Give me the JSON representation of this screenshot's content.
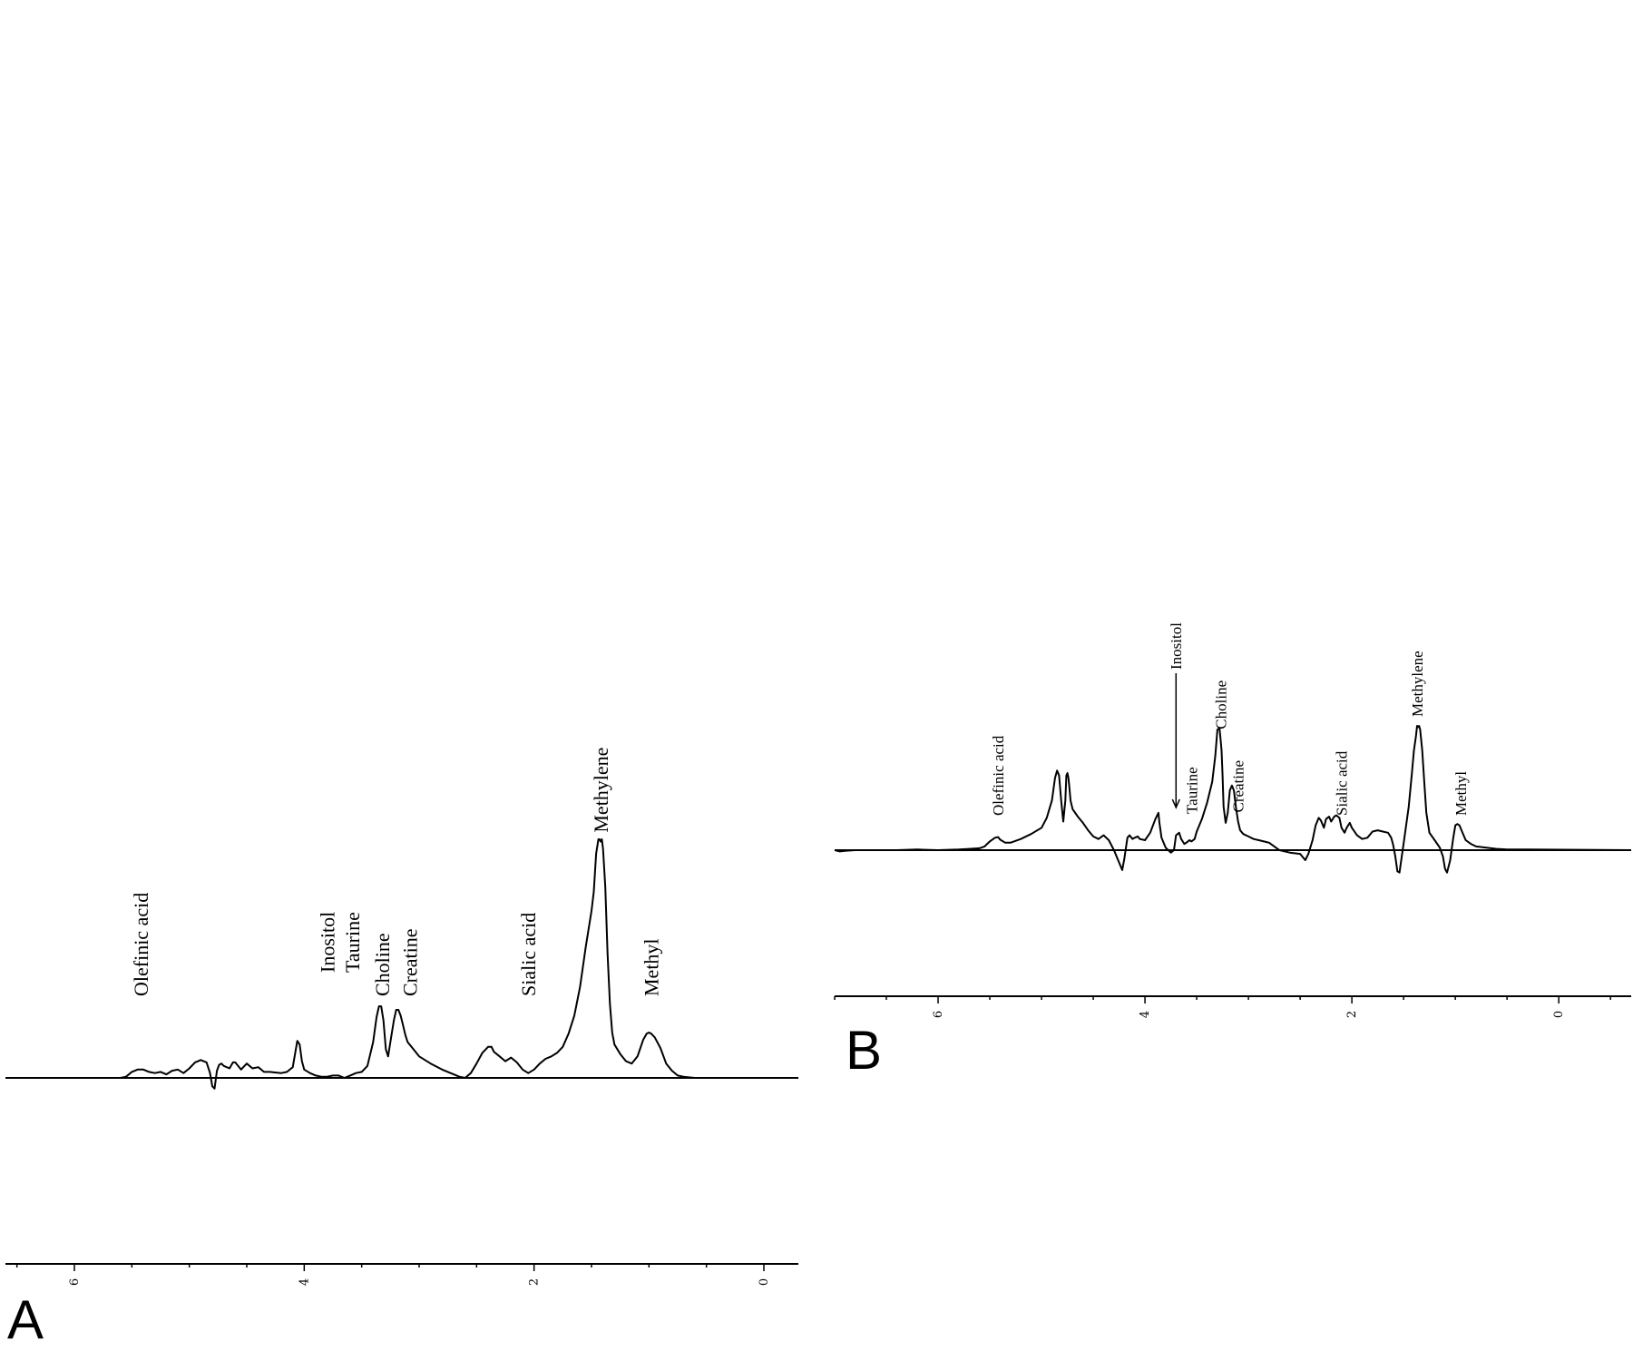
{
  "chart_data": [
    {
      "type": "line",
      "panel_label": "A",
      "xlim": [
        6.6,
        -0.3
      ],
      "xticks": [
        6,
        4,
        2,
        0
      ],
      "xtick_labels": [
        "6",
        "4",
        "2",
        "0"
      ],
      "grid": false,
      "series": [
        {
          "x": [
            6.6,
            5.6,
            5.55,
            5.5,
            5.45,
            5.4,
            5.35,
            5.3,
            5.25,
            5.2,
            5.15,
            5.1,
            5.05,
            5.0,
            4.95,
            4.9,
            4.85,
            4.82,
            4.8,
            4.78,
            4.76,
            4.74,
            4.72,
            4.7,
            4.65,
            4.62,
            4.6,
            4.55,
            4.5,
            4.45,
            4.4,
            4.35,
            4.3,
            4.2,
            4.15,
            4.1,
            4.08,
            4.06,
            4.04,
            4.02,
            4.0,
            3.95,
            3.9,
            3.85,
            3.8,
            3.75,
            3.7,
            3.65,
            3.6,
            3.55,
            3.5,
            3.45,
            3.4,
            3.37,
            3.35,
            3.33,
            3.31,
            3.29,
            3.27,
            3.25,
            3.22,
            3.2,
            3.18,
            3.16,
            3.14,
            3.12,
            3.1,
            3.05,
            3.0,
            2.9,
            2.8,
            2.7,
            2.65,
            2.6,
            2.55,
            2.5,
            2.45,
            2.4,
            2.37,
            2.35,
            2.3,
            2.25,
            2.2,
            2.15,
            2.1,
            2.05,
            2.0,
            1.95,
            1.9,
            1.85,
            1.8,
            1.75,
            1.7,
            1.65,
            1.6,
            1.55,
            1.5,
            1.48,
            1.46,
            1.44,
            1.43,
            1.42,
            1.41,
            1.4,
            1.38,
            1.36,
            1.34,
            1.32,
            1.3,
            1.25,
            1.2,
            1.15,
            1.1,
            1.05,
            1.02,
            1.0,
            0.98,
            0.95,
            0.9,
            0.85,
            0.8,
            0.75,
            0.7,
            0.6,
            -0.3
          ],
          "y": [
            0,
            0,
            0.5,
            2.5,
            3.5,
            3.5,
            2.5,
            2.0,
            2.5,
            1.5,
            3.0,
            3.5,
            2.0,
            4.0,
            6.5,
            7.5,
            6.5,
            2.0,
            -3.5,
            -4.5,
            3.0,
            5.5,
            6.0,
            5.0,
            4.0,
            6.5,
            6.5,
            3.5,
            6.0,
            4.0,
            4.5,
            2.5,
            2.5,
            2.0,
            2.5,
            4.5,
            10.0,
            15.5,
            14.0,
            7.0,
            3.5,
            2.0,
            1.0,
            0.5,
            0.5,
            1.0,
            1.0,
            0.0,
            1.0,
            2.0,
            2.5,
            5.0,
            15.0,
            25.5,
            30.0,
            30.0,
            24.0,
            12.0,
            9.0,
            15.0,
            24.0,
            28.5,
            28.5,
            26.0,
            22.0,
            18.0,
            15.0,
            12.0,
            9.0,
            6.0,
            3.5,
            1.5,
            0.5,
            0.0,
            2.0,
            6.0,
            10.5,
            13.0,
            13.0,
            11.0,
            9.0,
            7.0,
            8.5,
            6.5,
            3.5,
            2.0,
            3.5,
            6.0,
            8.0,
            9.0,
            10.5,
            13.0,
            18.5,
            26.0,
            38.0,
            55.0,
            70.0,
            78.0,
            94.0,
            100.0,
            100.0,
            99.0,
            100.0,
            96.0,
            80.0,
            52.0,
            31.0,
            19.0,
            14.0,
            10.0,
            7.0,
            6.0,
            9.0,
            16.0,
            18.5,
            19.0,
            18.5,
            17.0,
            12.5,
            6.0,
            3.0,
            1.0,
            0.5,
            0.0,
            0.0
          ]
        }
      ],
      "peak_labels": [
        {
          "text": "Olefinic acid",
          "x": 5.42
        },
        {
          "text": "Inositol",
          "x": 3.8
        },
        {
          "text": "Taurine",
          "x": 3.58
        },
        {
          "text": "Choline",
          "x": 3.32
        },
        {
          "text": "Creatine",
          "x": 3.08
        },
        {
          "text": "Sialic acid",
          "x": 2.05
        },
        {
          "text": "Methylene",
          "x": 1.42
        },
        {
          "text": "Methyl",
          "x": 0.98
        }
      ]
    },
    {
      "type": "line",
      "panel_label": "B",
      "xlim": [
        7.0,
        -0.7
      ],
      "xticks": [
        6,
        4,
        2,
        0
      ],
      "xtick_labels": [
        "6",
        "4",
        "2",
        "0"
      ],
      "grid": false,
      "series": [
        {
          "x": [
            7.0,
            6.95,
            6.9,
            6.8,
            6.6,
            6.4,
            6.2,
            6.0,
            5.8,
            5.7,
            5.6,
            5.55,
            5.5,
            5.45,
            5.42,
            5.4,
            5.35,
            5.3,
            5.2,
            5.1,
            5.0,
            4.95,
            4.9,
            4.87,
            4.85,
            4.83,
            4.81,
            4.79,
            4.77,
            4.76,
            4.75,
            4.74,
            4.73,
            4.72,
            4.7,
            4.65,
            4.6,
            4.55,
            4.5,
            4.45,
            4.4,
            4.35,
            4.3,
            4.25,
            4.22,
            4.2,
            4.17,
            4.15,
            4.12,
            4.1,
            4.07,
            4.05,
            4.0,
            3.95,
            3.9,
            3.87,
            3.86,
            3.84,
            3.8,
            3.75,
            3.72,
            3.7,
            3.67,
            3.65,
            3.62,
            3.6,
            3.57,
            3.55,
            3.52,
            3.5,
            3.45,
            3.4,
            3.35,
            3.32,
            3.3,
            3.28,
            3.27,
            3.26,
            3.25,
            3.24,
            3.22,
            3.2,
            3.18,
            3.16,
            3.14,
            3.12,
            3.1,
            3.08,
            3.05,
            3.0,
            2.95,
            2.9,
            2.8,
            2.75,
            2.7,
            2.6,
            2.5,
            2.45,
            2.42,
            2.38,
            2.35,
            2.32,
            2.3,
            2.27,
            2.25,
            2.22,
            2.2,
            2.17,
            2.15,
            2.12,
            2.1,
            2.07,
            2.05,
            2.02,
            2.0,
            1.95,
            1.9,
            1.85,
            1.8,
            1.75,
            1.7,
            1.65,
            1.62,
            1.6,
            1.58,
            1.56,
            1.54,
            1.5,
            1.45,
            1.42,
            1.4,
            1.38,
            1.37,
            1.36,
            1.35,
            1.34,
            1.32,
            1.3,
            1.28,
            1.25,
            1.2,
            1.15,
            1.12,
            1.1,
            1.08,
            1.05,
            1.02,
            1.0,
            0.98,
            0.96,
            0.94,
            0.92,
            0.9,
            0.85,
            0.8,
            0.7,
            0.6,
            0.5,
            0.3,
            -0.7
          ],
          "y": [
            0,
            -1.0,
            -0.5,
            0,
            0,
            0,
            0.5,
            0,
            0.5,
            1.0,
            1.5,
            3.0,
            7.0,
            10.0,
            10.5,
            8.5,
            6.0,
            6.0,
            9.0,
            13.0,
            18.0,
            26.0,
            40.0,
            58.0,
            64.0,
            60.0,
            40.0,
            23.0,
            40.0,
            60.0,
            62.0,
            58.0,
            50.0,
            40.0,
            33.0,
            27.0,
            22.0,
            16.0,
            11.0,
            9.0,
            12.0,
            8.0,
            0,
            -10.0,
            -16.0,
            -7.0,
            10.0,
            12.0,
            9.0,
            10.0,
            11.0,
            9.0,
            8.0,
            14.0,
            25.0,
            30.0,
            22.0,
            10.0,
            2.0,
            -2.0,
            0,
            12.0,
            14.0,
            9.0,
            5.0,
            6.0,
            8.0,
            7.0,
            9.0,
            15.0,
            25.0,
            38.0,
            55.0,
            76.0,
            97.0,
            98.0,
            90.0,
            80.0,
            60.0,
            35.0,
            22.0,
            30.0,
            48.0,
            52.0,
            48.0,
            34.0,
            23.0,
            16.0,
            13.0,
            11.0,
            9.0,
            8.0,
            6.0,
            3.0,
            0,
            -2.0,
            -3.0,
            -8.0,
            -3.0,
            8.0,
            20.0,
            26.0,
            24.0,
            18.0,
            25.0,
            27.0,
            23.0,
            27.0,
            28.0,
            26.0,
            18.0,
            14.0,
            18.0,
            22.0,
            18.0,
            12.0,
            9.0,
            10.0,
            15.0,
            16.0,
            15.0,
            14.0,
            10.0,
            4.0,
            -5.0,
            -17.0,
            -18.0,
            5.0,
            35.0,
            62.0,
            80.0,
            92.0,
            100.0,
            99.0,
            100.0,
            97.0,
            80.0,
            55.0,
            30.0,
            14.0,
            8.0,
            2.0,
            -5.0,
            -15.0,
            -18.0,
            -8.0,
            10.0,
            20.0,
            21.0,
            20.0,
            16.0,
            12.0,
            8.0,
            5.0,
            3.0,
            2.0,
            1.0,
            0.5,
            0.5,
            0
          ]
        }
      ],
      "peak_labels": [
        {
          "text": "Olefinic acid",
          "x": 5.42
        },
        {
          "text": "Inositol",
          "x": 3.7
        },
        {
          "text": "Taurine",
          "x": 3.55
        },
        {
          "text": "Choline",
          "x": 3.27
        },
        {
          "text": "Creatine",
          "x": 3.1
        },
        {
          "text": "Sialic acid",
          "x": 2.1
        },
        {
          "text": "Methylene",
          "x": 1.37
        },
        {
          "text": "Methyl",
          "x": 0.95
        }
      ]
    }
  ]
}
